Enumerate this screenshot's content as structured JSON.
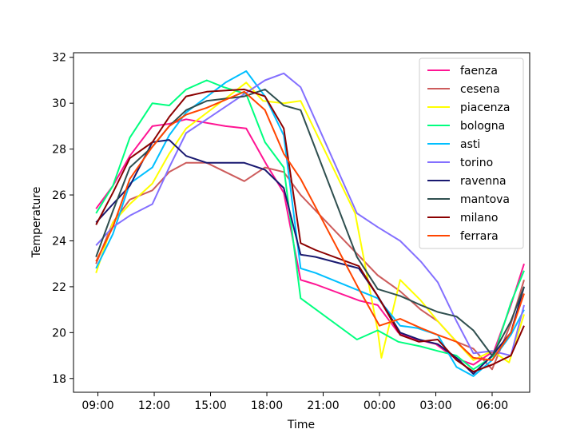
{
  "chart_data": {
    "type": "line",
    "title": "",
    "xlabel": "Time",
    "ylabel": "Temperature",
    "x_unit": "hour (wraps past midnight)",
    "xlim": [
      7.7,
      32.0
    ],
    "ylim": [
      17.4,
      32.2
    ],
    "x_ticks": [
      {
        "value": 9,
        "label": "09:00"
      },
      {
        "value": 12,
        "label": "12:00"
      },
      {
        "value": 15,
        "label": "15:00"
      },
      {
        "value": 18,
        "label": "18:00"
      },
      {
        "value": 21,
        "label": "21:00"
      },
      {
        "value": 24,
        "label": "00:00"
      },
      {
        "value": 27,
        "label": "03:00"
      },
      {
        "value": 30,
        "label": "06:00"
      }
    ],
    "y_ticks": [
      18,
      20,
      22,
      24,
      26,
      28,
      30,
      32
    ],
    "grid": false,
    "legend": "top-right",
    "series": [
      {
        "name": "faenza",
        "color": "#ff1493",
        "points": [
          [
            8.9,
            25.4
          ],
          [
            9.8,
            26.4
          ],
          [
            10.7,
            27.7
          ],
          [
            11.9,
            29.0
          ],
          [
            12.8,
            29.1
          ],
          [
            13.7,
            29.3
          ],
          [
            15.8,
            29.0
          ],
          [
            16.9,
            28.9
          ],
          [
            18.0,
            27.3
          ],
          [
            18.9,
            26.1
          ],
          [
            19.8,
            22.3
          ],
          [
            20.6,
            22.1
          ],
          [
            22.9,
            21.4
          ],
          [
            23.9,
            21.2
          ],
          [
            25.0,
            20.0
          ],
          [
            26.0,
            19.7
          ],
          [
            27.0,
            19.5
          ],
          [
            28.0,
            18.9
          ],
          [
            29.0,
            18.6
          ],
          [
            30.1,
            19.2
          ],
          [
            31.0,
            21.2
          ],
          [
            31.7,
            23.0
          ]
        ]
      },
      {
        "name": "cesena",
        "color": "#cd5c5c",
        "points": [
          [
            8.9,
            23.0
          ],
          [
            9.8,
            24.8
          ],
          [
            10.7,
            25.8
          ],
          [
            11.9,
            26.2
          ],
          [
            12.8,
            27.0
          ],
          [
            13.7,
            27.4
          ],
          [
            14.8,
            27.4
          ],
          [
            16.8,
            26.6
          ],
          [
            17.9,
            27.2
          ],
          [
            18.9,
            27.0
          ],
          [
            19.8,
            26.0
          ],
          [
            21.9,
            24.2
          ],
          [
            23.9,
            22.5
          ],
          [
            25.1,
            21.8
          ],
          [
            26.2,
            21.0
          ],
          [
            27.1,
            20.5
          ],
          [
            28.1,
            19.6
          ],
          [
            29.0,
            19.3
          ],
          [
            30.0,
            18.4
          ],
          [
            31.0,
            20.4
          ],
          [
            31.7,
            22.3
          ]
        ]
      },
      {
        "name": "piacenza",
        "color": "#ffff00",
        "points": [
          [
            8.9,
            22.6
          ],
          [
            9.8,
            24.8
          ],
          [
            10.7,
            25.6
          ],
          [
            11.9,
            26.5
          ],
          [
            12.8,
            27.8
          ],
          [
            13.7,
            28.9
          ],
          [
            15.8,
            30.2
          ],
          [
            16.9,
            30.9
          ],
          [
            17.8,
            30.1
          ],
          [
            18.9,
            30.0
          ],
          [
            19.8,
            30.1
          ],
          [
            22.7,
            25.2
          ],
          [
            23.9,
            20.1
          ],
          [
            24.1,
            18.9
          ],
          [
            25.1,
            22.3
          ],
          [
            26.2,
            21.4
          ],
          [
            27.1,
            20.5
          ],
          [
            28.1,
            19.6
          ],
          [
            29.0,
            18.8
          ],
          [
            30.0,
            19.2
          ],
          [
            30.9,
            18.7
          ],
          [
            31.7,
            20.8
          ]
        ]
      },
      {
        "name": "bologna",
        "color": "#00ff7f",
        "points": [
          [
            8.9,
            25.2
          ],
          [
            9.8,
            26.4
          ],
          [
            10.7,
            28.5
          ],
          [
            11.9,
            30.0
          ],
          [
            12.8,
            29.9
          ],
          [
            13.7,
            30.6
          ],
          [
            14.8,
            31.0
          ],
          [
            15.7,
            30.7
          ],
          [
            16.9,
            30.4
          ],
          [
            17.9,
            28.3
          ],
          [
            18.9,
            27.2
          ],
          [
            19.8,
            21.5
          ],
          [
            22.8,
            19.7
          ],
          [
            23.9,
            20.1
          ],
          [
            25.0,
            19.6
          ],
          [
            26.2,
            19.4
          ],
          [
            27.1,
            19.2
          ],
          [
            28.1,
            19.0
          ],
          [
            29.0,
            18.4
          ],
          [
            30.1,
            19.0
          ],
          [
            31.0,
            21.3
          ],
          [
            31.7,
            22.7
          ]
        ]
      },
      {
        "name": "asti",
        "color": "#00bfff",
        "points": [
          [
            8.9,
            22.8
          ],
          [
            9.8,
            24.3
          ],
          [
            10.7,
            26.5
          ],
          [
            11.9,
            27.2
          ],
          [
            12.8,
            28.6
          ],
          [
            13.7,
            29.6
          ],
          [
            15.8,
            30.9
          ],
          [
            16.9,
            31.4
          ],
          [
            17.9,
            30.3
          ],
          [
            18.9,
            28.6
          ],
          [
            19.8,
            22.8
          ],
          [
            20.6,
            22.6
          ],
          [
            23.9,
            21.5
          ],
          [
            25.1,
            20.3
          ],
          [
            26.0,
            20.2
          ],
          [
            27.1,
            19.9
          ],
          [
            28.1,
            18.5
          ],
          [
            29.0,
            18.1
          ],
          [
            30.0,
            18.8
          ],
          [
            31.0,
            19.9
          ],
          [
            31.7,
            21.0
          ]
        ]
      },
      {
        "name": "torino",
        "color": "#8470ff",
        "points": [
          [
            8.9,
            23.8
          ],
          [
            9.8,
            24.6
          ],
          [
            10.7,
            25.1
          ],
          [
            11.9,
            25.6
          ],
          [
            12.8,
            27.2
          ],
          [
            13.7,
            28.7
          ],
          [
            14.8,
            29.3
          ],
          [
            16.8,
            30.4
          ],
          [
            17.9,
            31.0
          ],
          [
            18.9,
            31.3
          ],
          [
            19.8,
            30.7
          ],
          [
            22.8,
            25.2
          ],
          [
            23.9,
            24.6
          ],
          [
            25.1,
            24.0
          ],
          [
            26.2,
            23.1
          ],
          [
            27.1,
            22.2
          ],
          [
            28.1,
            20.5
          ],
          [
            29.0,
            19.1
          ],
          [
            30.0,
            19.2
          ],
          [
            31.0,
            19.0
          ],
          [
            31.7,
            21.2
          ]
        ]
      },
      {
        "name": "ravenna",
        "color": "#191970",
        "points": [
          [
            8.9,
            24.8
          ],
          [
            9.8,
            25.6
          ],
          [
            10.7,
            26.4
          ],
          [
            11.9,
            28.3
          ],
          [
            12.8,
            28.4
          ],
          [
            13.7,
            27.7
          ],
          [
            14.8,
            27.4
          ],
          [
            16.8,
            27.4
          ],
          [
            17.9,
            27.1
          ],
          [
            18.9,
            26.3
          ],
          [
            19.8,
            23.4
          ],
          [
            20.6,
            23.3
          ],
          [
            22.9,
            22.8
          ],
          [
            23.9,
            21.6
          ],
          [
            25.1,
            20.0
          ],
          [
            26.1,
            19.7
          ],
          [
            27.1,
            19.5
          ],
          [
            28.1,
            18.9
          ],
          [
            29.0,
            18.2
          ],
          [
            30.0,
            19.0
          ],
          [
            31.0,
            20.0
          ],
          [
            31.7,
            22.0
          ]
        ]
      },
      {
        "name": "mantova",
        "color": "#2f4f4f",
        "points": [
          [
            8.9,
            23.3
          ],
          [
            9.8,
            25.3
          ],
          [
            10.7,
            27.2
          ],
          [
            11.9,
            28.1
          ],
          [
            12.8,
            29.0
          ],
          [
            13.7,
            29.7
          ],
          [
            14.8,
            30.1
          ],
          [
            16.8,
            30.3
          ],
          [
            17.9,
            30.6
          ],
          [
            18.9,
            29.9
          ],
          [
            19.8,
            29.7
          ],
          [
            22.8,
            23.3
          ],
          [
            23.9,
            21.9
          ],
          [
            25.1,
            21.6
          ],
          [
            26.2,
            21.2
          ],
          [
            27.1,
            20.9
          ],
          [
            28.1,
            20.7
          ],
          [
            29.0,
            20.1
          ],
          [
            30.0,
            19.0
          ],
          [
            31.0,
            20.5
          ],
          [
            31.7,
            22.0
          ]
        ]
      },
      {
        "name": "milano",
        "color": "#8b0000",
        "points": [
          [
            8.9,
            24.7
          ],
          [
            9.8,
            26.1
          ],
          [
            10.7,
            27.6
          ],
          [
            11.9,
            28.3
          ],
          [
            12.8,
            29.4
          ],
          [
            13.7,
            30.3
          ],
          [
            14.8,
            30.5
          ],
          [
            16.8,
            30.6
          ],
          [
            17.9,
            30.3
          ],
          [
            18.9,
            28.9
          ],
          [
            19.8,
            23.9
          ],
          [
            20.6,
            23.6
          ],
          [
            22.9,
            22.9
          ],
          [
            23.9,
            21.6
          ],
          [
            25.1,
            19.9
          ],
          [
            26.1,
            19.6
          ],
          [
            27.1,
            19.7
          ],
          [
            28.1,
            18.8
          ],
          [
            29.0,
            18.3
          ],
          [
            30.0,
            18.6
          ],
          [
            31.0,
            19.0
          ],
          [
            31.7,
            20.3
          ]
        ]
      },
      {
        "name": "ferrara",
        "color": "#ff4500",
        "points": [
          [
            8.9,
            23.1
          ],
          [
            9.8,
            24.6
          ],
          [
            10.7,
            26.7
          ],
          [
            11.9,
            28.1
          ],
          [
            12.8,
            29.0
          ],
          [
            13.7,
            29.5
          ],
          [
            14.8,
            29.8
          ],
          [
            16.8,
            30.5
          ],
          [
            17.9,
            29.7
          ],
          [
            18.9,
            27.8
          ],
          [
            19.8,
            26.7
          ],
          [
            22.9,
            21.9
          ],
          [
            24.0,
            20.3
          ],
          [
            25.1,
            20.6
          ],
          [
            26.2,
            20.2
          ],
          [
            27.1,
            19.9
          ],
          [
            28.1,
            19.6
          ],
          [
            29.0,
            18.9
          ],
          [
            30.0,
            18.8
          ],
          [
            31.0,
            20.0
          ],
          [
            31.7,
            21.7
          ]
        ]
      }
    ]
  }
}
